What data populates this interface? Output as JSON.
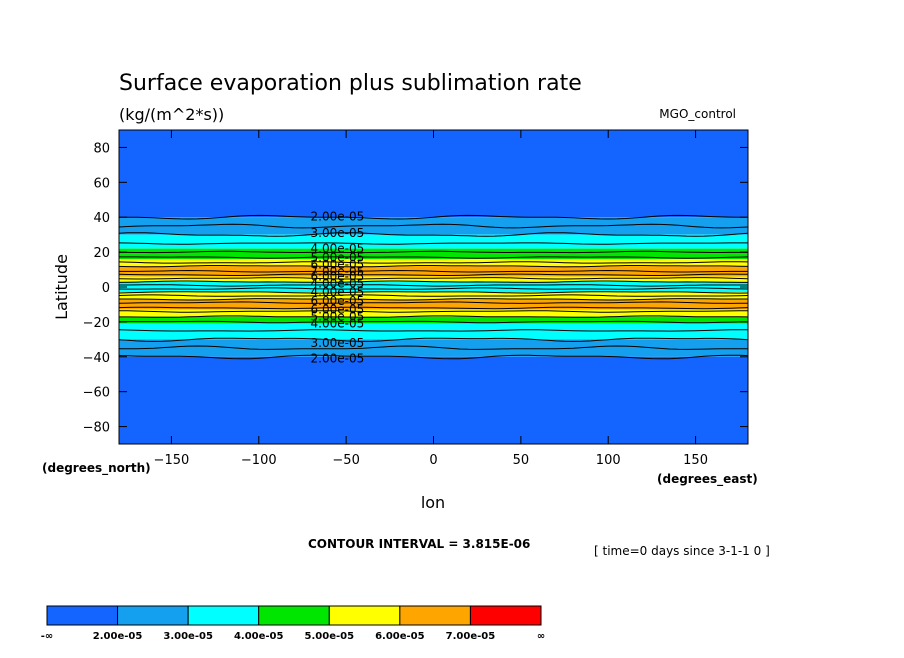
{
  "chart_data": {
    "type": "heatmap",
    "title": "Surface evaporation plus sublimation rate",
    "units": "(kg/(m^2*s))",
    "dataset": "MGO_control",
    "xlabel": "lon",
    "ylabel": "Latitude",
    "x_units": "(degrees_east)",
    "y_units": "(degrees_north)",
    "xlim": [
      -180,
      180
    ],
    "ylim": [
      -90,
      90
    ],
    "x_ticks": [
      -150,
      -100,
      -50,
      0,
      50,
      100,
      150
    ],
    "y_ticks": [
      80,
      60,
      40,
      20,
      0,
      -20,
      -40,
      -60,
      -80
    ],
    "x_tick_labels": [
      "−150",
      "−100",
      "−50",
      "0",
      "50",
      "100",
      "150"
    ],
    "y_tick_labels": [
      "80",
      "60",
      "40",
      "20",
      "0",
      "−20",
      "−40",
      "−60",
      "−80"
    ],
    "contour_interval": "CONTOUR INTERVAL = 3.815E-06",
    "time_note": "[ time=0 days since 3-1-1 0 ]",
    "colorbar": {
      "colors": [
        "#1464ff",
        "#14a0ef",
        "#00ffff",
        "#00e600",
        "#ffff00",
        "#ffa500",
        "#ff0000"
      ],
      "labels": [
        "-∞",
        "2.00e-05",
        "3.00e-05",
        "4.00e-05",
        "5.00e-05",
        "6.00e-05",
        "7.00e-05",
        "∞"
      ]
    },
    "bands": [
      {
        "lat": [
          40,
          90
        ],
        "color": "#1464ff"
      },
      {
        "lat": [
          30,
          40
        ],
        "color": "#14a0ef"
      },
      {
        "lat": [
          22,
          30
        ],
        "color": "#00ffff"
      },
      {
        "lat": [
          16,
          22
        ],
        "color": "#00e600"
      },
      {
        "lat": [
          12,
          16
        ],
        "color": "#ffff00"
      },
      {
        "lat": [
          6,
          12
        ],
        "color": "#ffa500"
      },
      {
        "lat": [
          3,
          6
        ],
        "color": "#ffff00"
      },
      {
        "lat": [
          -3,
          3
        ],
        "color": "#00ffff"
      },
      {
        "lat": [
          -7,
          -3
        ],
        "color": "#ffff00"
      },
      {
        "lat": [
          -13,
          -7
        ],
        "color": "#ffa500"
      },
      {
        "lat": [
          -17,
          -13
        ],
        "color": "#ffff00"
      },
      {
        "lat": [
          -21,
          -17
        ],
        "color": "#00e600"
      },
      {
        "lat": [
          -30,
          -21
        ],
        "color": "#00ffff"
      },
      {
        "lat": [
          -40,
          -30
        ],
        "color": "#14a0ef"
      },
      {
        "lat": [
          -90,
          -40
        ],
        "color": "#1464ff"
      }
    ],
    "contour_lats": [
      40,
      35,
      30,
      25,
      20,
      17,
      14,
      12,
      9,
      7,
      5,
      3,
      1,
      -1,
      -3,
      -5,
      -7,
      -9,
      -12,
      -14,
      -17,
      -20,
      -25,
      -30,
      -35,
      -40
    ],
    "contour_labels": [
      {
        "text": "2.00e-05",
        "lat": 40.5
      },
      {
        "text": "3.00e-05",
        "lat": 31
      },
      {
        "text": "4.00e-05",
        "lat": 22
      },
      {
        "text": "5.00e-05",
        "lat": 17
      },
      {
        "text": "6.00e-05",
        "lat": 13
      },
      {
        "text": "7.00e-05",
        "lat": 9
      },
      {
        "text": "6.00e-05",
        "lat": 6
      },
      {
        "text": "4.00e-05",
        "lat": 2
      },
      {
        "text": "4.00e-05",
        "lat": -3
      },
      {
        "text": "6.00e-05",
        "lat": -8
      },
      {
        "text": "6.00e-05",
        "lat": -13
      },
      {
        "text": "5.00e-05",
        "lat": -17
      },
      {
        "text": "4.00e-05",
        "lat": -21
      },
      {
        "text": "3.00e-05",
        "lat": -32
      },
      {
        "text": "2.00e-05",
        "lat": -41
      }
    ]
  }
}
